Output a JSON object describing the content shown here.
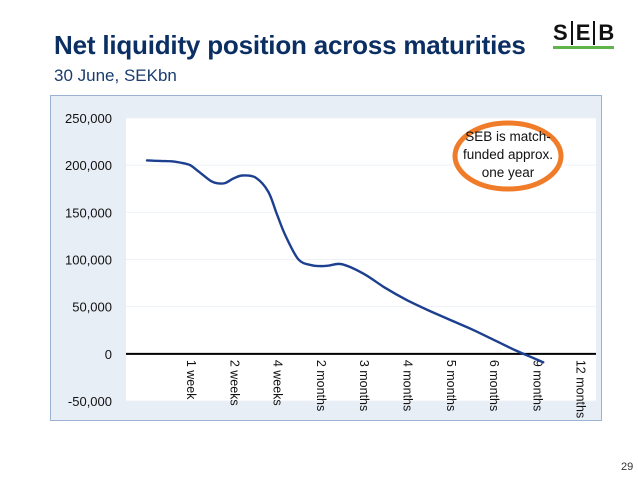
{
  "header": {
    "title": "Net liquidity position across maturities",
    "subtitle": "30 June, SEKbn",
    "logo_letters": [
      "S",
      "E",
      "B"
    ],
    "page_number": "29"
  },
  "colors": {
    "title": "#0b2f63",
    "line": "#1c3f8f",
    "callout_border": "#f07c2a",
    "chart_bg": "#e8eef6",
    "logo_accent": "#60b44a"
  },
  "callout": {
    "lines": [
      "SEB is match-",
      "funded approx.",
      "one year"
    ]
  },
  "chart_data": {
    "type": "line",
    "title": "",
    "xlabel": "",
    "ylabel": "",
    "ylim": [
      -50000,
      250000
    ],
    "yticks": [
      250000,
      200000,
      150000,
      100000,
      50000,
      0,
      -50000
    ],
    "ytick_labels": [
      "250,000",
      "200,000",
      "150,000",
      "100,000",
      "50,000",
      "0",
      "-50,000"
    ],
    "categories": [
      "1 week",
      "2 weeks",
      "4 weeks",
      "2 months",
      "3 months",
      "4 months",
      "5 months",
      "6 months",
      "9 months",
      "12 months"
    ],
    "series": [
      {
        "name": "Net liquidity position",
        "x": [
          0,
          0.3,
          0.6,
          0.85,
          1.0,
          1.2,
          1.45,
          1.6,
          1.8,
          2.0,
          2.2,
          2.5,
          2.8,
          3.0,
          3.2,
          3.5,
          3.8,
          4.0,
          4.2,
          4.5,
          5.0,
          5.5,
          6.0,
          6.5,
          7.0,
          7.5,
          8.0,
          8.5,
          9.0,
          9.15
        ],
        "values": [
          205000,
          204500,
          204000,
          202000,
          200000,
          193000,
          184000,
          181000,
          181000,
          186000,
          189000,
          187000,
          172000,
          148000,
          125000,
          100000,
          94000,
          93000,
          93500,
          95000,
          85000,
          70000,
          57000,
          46000,
          36000,
          26000,
          15000,
          4000,
          -6000,
          -9000
        ]
      }
    ]
  }
}
